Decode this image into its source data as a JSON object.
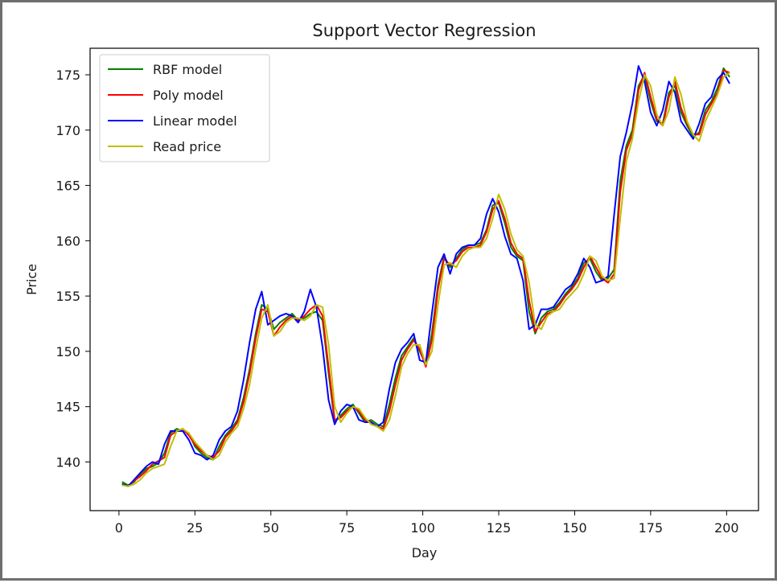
{
  "chart_data": {
    "type": "line",
    "title": "Support Vector Regression",
    "xlabel": "Day",
    "ylabel": "Price",
    "xlim": [
      -9.5,
      210.5
    ],
    "ylim": [
      135.6,
      177.4
    ],
    "xticks": [
      0,
      25,
      50,
      75,
      100,
      125,
      150,
      175,
      200
    ],
    "yticks": [
      140,
      145,
      150,
      155,
      160,
      165,
      170,
      175
    ],
    "grid": false,
    "legend_position": "top-left",
    "x": [
      1,
      3,
      5,
      7,
      9,
      11,
      13,
      15,
      17,
      19,
      21,
      23,
      25,
      27,
      29,
      31,
      33,
      35,
      37,
      39,
      41,
      43,
      45,
      47,
      49,
      51,
      53,
      55,
      57,
      59,
      61,
      63,
      65,
      67,
      69,
      71,
      73,
      75,
      77,
      79,
      81,
      83,
      85,
      87,
      89,
      91,
      93,
      95,
      97,
      99,
      101,
      103,
      105,
      107,
      109,
      111,
      113,
      115,
      117,
      119,
      121,
      123,
      125,
      127,
      129,
      131,
      133,
      135,
      137,
      139,
      141,
      143,
      145,
      147,
      149,
      151,
      153,
      155,
      157,
      159,
      161,
      163,
      165,
      167,
      169,
      171,
      173,
      175,
      177,
      179,
      181,
      183,
      185,
      187,
      189,
      191,
      193,
      195,
      197,
      199,
      201
    ],
    "series": [
      {
        "name": "RBF model",
        "color": "#008000",
        "values": [
          138.2,
          137.9,
          138.2,
          138.9,
          139.4,
          139.6,
          139.9,
          140.8,
          142.6,
          143.0,
          142.8,
          142.6,
          141.4,
          140.8,
          140.4,
          140.2,
          141.4,
          142.4,
          143.0,
          143.8,
          145.8,
          148.4,
          151.6,
          154.2,
          153.8,
          152.0,
          152.6,
          153.0,
          153.4,
          152.8,
          153.0,
          153.4,
          153.6,
          152.8,
          148.0,
          143.6,
          144.2,
          144.8,
          145.2,
          144.4,
          143.6,
          143.8,
          143.4,
          143.2,
          145.2,
          147.6,
          149.6,
          150.4,
          151.2,
          150.0,
          148.8,
          151.6,
          156.0,
          158.6,
          157.6,
          158.4,
          159.2,
          159.6,
          159.6,
          159.8,
          161.0,
          163.2,
          163.4,
          161.6,
          159.4,
          158.6,
          158.2,
          153.6,
          151.6,
          153.0,
          153.6,
          153.8,
          154.4,
          155.2,
          155.8,
          156.6,
          158.0,
          158.4,
          157.2,
          156.4,
          156.6,
          157.4,
          165.4,
          168.6,
          170.0,
          174.0,
          175.0,
          172.6,
          170.8,
          170.6,
          173.4,
          174.0,
          171.6,
          170.4,
          169.4,
          169.8,
          171.8,
          172.6,
          173.8,
          175.6,
          174.8
        ]
      },
      {
        "name": "Poly model",
        "color": "#ff0000",
        "values": [
          138.0,
          137.8,
          138.3,
          138.7,
          139.2,
          139.8,
          140.1,
          140.4,
          142.4,
          142.8,
          143.0,
          142.4,
          141.6,
          141.0,
          140.6,
          140.4,
          141.0,
          142.2,
          142.8,
          143.6,
          145.4,
          148.0,
          151.2,
          153.8,
          153.6,
          151.4,
          152.2,
          152.8,
          153.2,
          152.8,
          153.2,
          153.8,
          154.2,
          153.2,
          148.6,
          143.8,
          144.0,
          144.6,
          145.0,
          144.6,
          143.8,
          143.6,
          143.2,
          143.0,
          144.6,
          147.0,
          149.2,
          150.2,
          151.0,
          150.2,
          148.6,
          151.0,
          155.6,
          158.4,
          157.8,
          158.2,
          159.0,
          159.4,
          159.4,
          159.6,
          160.8,
          162.8,
          163.6,
          162.0,
          159.8,
          158.8,
          158.4,
          154.6,
          151.8,
          152.6,
          153.4,
          153.6,
          154.2,
          155.0,
          155.6,
          156.4,
          157.6,
          158.6,
          157.6,
          156.6,
          156.2,
          157.0,
          164.4,
          168.2,
          169.6,
          173.6,
          175.2,
          173.0,
          171.0,
          170.4,
          173.0,
          174.4,
          172.0,
          170.6,
          169.6,
          169.6,
          171.4,
          172.4,
          173.4,
          175.4,
          175.2
        ]
      },
      {
        "name": "Linear model",
        "color": "#0000ff",
        "values": [
          138.0,
          137.8,
          138.4,
          139.0,
          139.6,
          140.0,
          139.8,
          141.6,
          142.8,
          142.8,
          142.8,
          142.0,
          140.8,
          140.6,
          140.2,
          140.6,
          142.0,
          142.8,
          143.2,
          144.6,
          147.4,
          150.8,
          153.8,
          155.4,
          152.4,
          152.8,
          153.2,
          153.4,
          153.2,
          152.6,
          153.6,
          155.6,
          154.0,
          150.4,
          145.6,
          143.4,
          144.6,
          145.2,
          145.0,
          143.8,
          143.6,
          143.6,
          143.2,
          143.6,
          146.6,
          149.0,
          150.2,
          150.8,
          151.6,
          149.2,
          149.0,
          153.4,
          157.6,
          158.8,
          157.0,
          158.8,
          159.4,
          159.6,
          159.6,
          160.2,
          162.4,
          163.8,
          162.6,
          160.4,
          158.8,
          158.4,
          156.4,
          152.0,
          152.4,
          153.8,
          153.8,
          154.0,
          154.8,
          155.6,
          156.0,
          157.0,
          158.4,
          157.6,
          156.2,
          156.4,
          156.8,
          162.4,
          167.6,
          169.8,
          172.4,
          175.8,
          174.4,
          171.6,
          170.4,
          171.8,
          174.4,
          173.4,
          170.8,
          170.0,
          169.2,
          170.6,
          172.4,
          173.0,
          174.6,
          175.2,
          174.2
        ]
      },
      {
        "name": "Read price",
        "color": "#bfbf00",
        "values": [
          137.9,
          137.8,
          138.0,
          138.4,
          139.0,
          139.4,
          139.6,
          139.8,
          141.4,
          142.8,
          143.0,
          142.6,
          141.8,
          141.2,
          140.6,
          140.2,
          140.6,
          141.8,
          142.6,
          143.2,
          144.8,
          147.0,
          150.2,
          153.0,
          154.2,
          151.4,
          151.8,
          152.6,
          153.0,
          153.0,
          152.8,
          153.2,
          154.2,
          154.0,
          150.6,
          145.0,
          143.6,
          144.4,
          145.0,
          144.8,
          144.0,
          143.4,
          143.2,
          142.8,
          143.8,
          146.0,
          148.6,
          149.8,
          150.6,
          150.6,
          148.8,
          150.0,
          154.2,
          157.8,
          158.0,
          157.6,
          158.6,
          159.2,
          159.4,
          159.4,
          160.2,
          162.0,
          164.2,
          162.8,
          160.6,
          159.2,
          158.6,
          156.2,
          152.4,
          152.0,
          153.2,
          153.6,
          153.8,
          154.6,
          155.2,
          155.8,
          157.0,
          158.6,
          158.2,
          156.8,
          156.4,
          156.6,
          162.0,
          167.2,
          169.2,
          172.6,
          175.0,
          174.0,
          171.4,
          170.4,
          171.8,
          174.8,
          173.2,
          170.8,
          169.6,
          169.0,
          170.8,
          172.0,
          173.2,
          174.8,
          175.2
        ]
      }
    ]
  }
}
